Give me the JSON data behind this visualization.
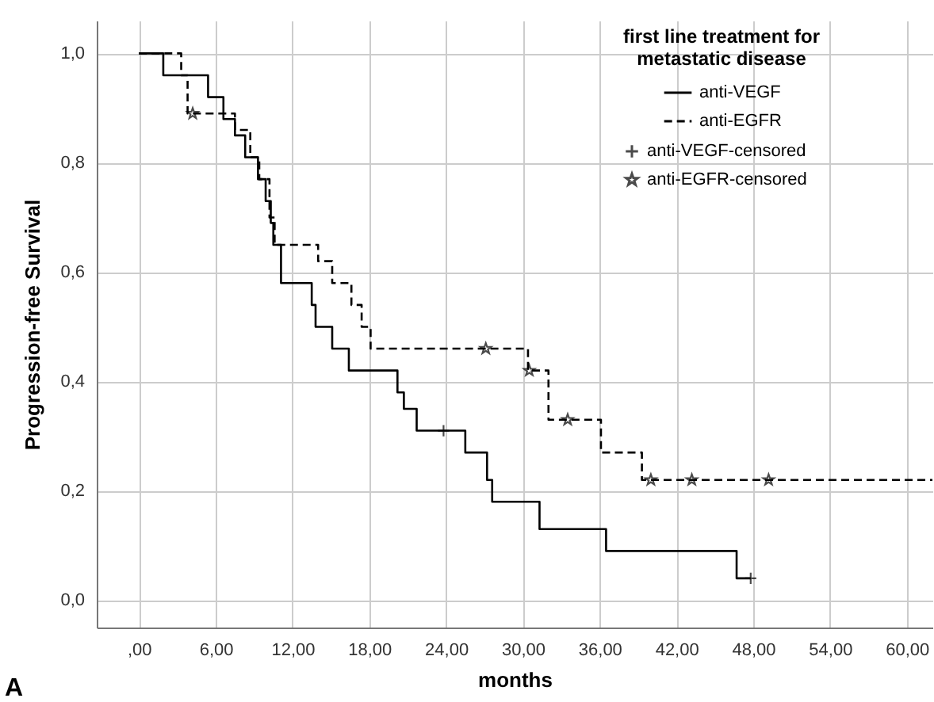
{
  "chart_data": {
    "type": "step",
    "xlabel": "months",
    "ylabel": "Progression-free Survival",
    "legend_title": "first line treatment for metastatic disease",
    "annotations": [
      "A"
    ],
    "xlim": [
      -3.3,
      62
    ],
    "ylim": [
      -0.05,
      1.06
    ],
    "xticks": [
      {
        "value": 0,
        "label": ",00"
      },
      {
        "value": 6,
        "label": "6,00"
      },
      {
        "value": 12,
        "label": "12,00"
      },
      {
        "value": 18,
        "label": "18,00"
      },
      {
        "value": 24,
        "label": "24,00"
      },
      {
        "value": 30,
        "label": "30,00"
      },
      {
        "value": 36,
        "label": "36,00"
      },
      {
        "value": 42,
        "label": "42,00"
      },
      {
        "value": 48,
        "label": "48,00"
      },
      {
        "value": 54,
        "label": "54,00"
      },
      {
        "value": 60,
        "label": "60,00"
      }
    ],
    "yticks": [
      {
        "value": 0,
        "label": "0,0"
      },
      {
        "value": 0.2,
        "label": "0,2"
      },
      {
        "value": 0.4,
        "label": "0,4"
      },
      {
        "value": 0.6,
        "label": "0,6"
      },
      {
        "value": 0.8,
        "label": "0,8"
      },
      {
        "value": 1,
        "label": "1,0"
      }
    ],
    "grid": true,
    "legend": "top right",
    "series": [
      {
        "name": "anti-VEGF",
        "color": "#000000",
        "line_style": "solid",
        "x": [
          0,
          1.9,
          5.4,
          6.6,
          7.5,
          8.3,
          9.3,
          9.9,
          10.3,
          10.5,
          11.1,
          13.5,
          13.8,
          15.1,
          16.4,
          20.2,
          20.7,
          21.7,
          25.5,
          27.2,
          27.6,
          31.3,
          36.5,
          46.7,
          47.8
        ],
        "values": [
          1,
          0.96,
          0.92,
          0.88,
          0.85,
          0.81,
          0.77,
          0.73,
          0.69,
          0.65,
          0.58,
          0.54,
          0.5,
          0.46,
          0.42,
          0.38,
          0.35,
          0.31,
          0.27,
          0.22,
          0.18,
          0.13,
          0.09,
          0.04,
          0.04
        ]
      },
      {
        "name": "anti-EGFR",
        "color": "#000000",
        "line_style": "dashed",
        "x": [
          0,
          3.3,
          3.8,
          7.5,
          8.7,
          9.4,
          10.2,
          10.6,
          14.0,
          15.1,
          16.6,
          17.4,
          18.1,
          30.4,
          32.0,
          36.1,
          39.3,
          62
        ],
        "values": [
          1,
          0.96,
          0.89,
          0.86,
          0.81,
          0.77,
          0.7,
          0.65,
          0.62,
          0.58,
          0.54,
          0.5,
          0.46,
          0.42,
          0.33,
          0.27,
          0.22,
          0.22
        ]
      },
      {
        "name": "anti-VEGF-censored",
        "type": "scatter",
        "color": "#000000",
        "marker": "cross",
        "x": [
          23.8,
          47.8
        ],
        "values": [
          0.31,
          0.04
        ]
      },
      {
        "name": "anti-EGFR-censored",
        "type": "scatter",
        "color": "#000000",
        "marker": "star",
        "x": [
          4.2,
          27.1,
          30.5,
          33.5,
          40.0,
          43.2,
          49.2
        ],
        "values": [
          0.89,
          0.46,
          0.42,
          0.33,
          0.22,
          0.22,
          0.22
        ]
      }
    ]
  }
}
